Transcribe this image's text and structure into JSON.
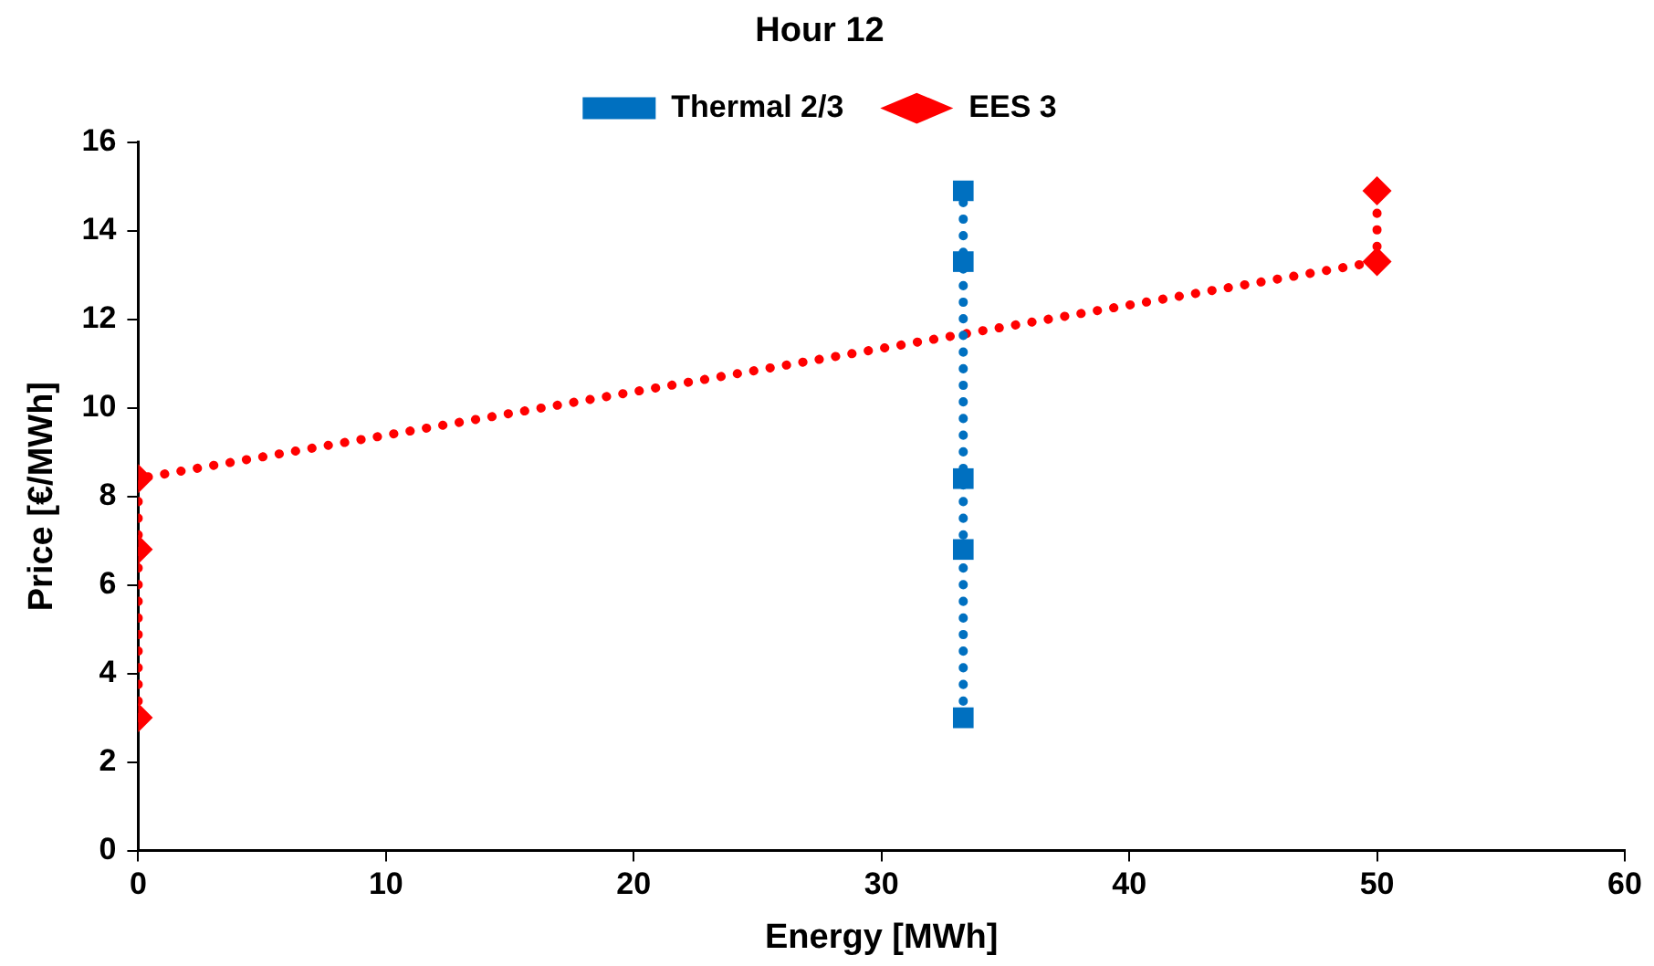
{
  "chart_data": {
    "type": "line",
    "title": "Hour 12",
    "xlabel": "Energy [MWh]",
    "ylabel": "Price [€/MWh]",
    "xlim": [
      0,
      60
    ],
    "xticks": [
      0,
      10,
      20,
      30,
      40,
      50,
      60
    ],
    "ylim": [
      0,
      16
    ],
    "yticks": [
      0,
      2,
      4,
      6,
      8,
      10,
      12,
      14,
      16
    ],
    "grid": false,
    "legend": "top",
    "line_style": "dotted",
    "series": [
      {
        "name": "Thermal 2/3",
        "color": "#0070c0",
        "marker": "square",
        "x": [
          33.3,
          33.3,
          33.3,
          33.3,
          33.3
        ],
        "values": [
          3.0,
          6.8,
          8.4,
          13.3,
          14.9
        ]
      },
      {
        "name": "EES 3",
        "color": "#ff0000",
        "marker": "diamond",
        "x": [
          0,
          0,
          0,
          50,
          50
        ],
        "values": [
          3.0,
          6.8,
          8.4,
          13.3,
          14.9
        ]
      }
    ]
  }
}
